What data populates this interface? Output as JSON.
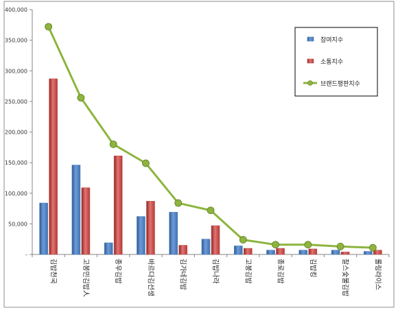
{
  "chart_data": {
    "type": "bar",
    "categories": [
      "김밥천국",
      "고봉민김밥人",
      "종우김밥",
      "바르다김선생",
      "김가네김밥",
      "김밥나라",
      "고봉김밥",
      "종로김밥",
      "김밥킹",
      "찰스숯불김밥",
      "롤링라이스"
    ],
    "series": [
      {
        "name": "참여지수",
        "type": "bar",
        "color": "#4A7EBB",
        "values": [
          84000,
          146000,
          19000,
          62000,
          69000,
          25000,
          14000,
          7000,
          7000,
          7000,
          5000
        ]
      },
      {
        "name": "소통지수",
        "type": "bar",
        "color": "#C0504D",
        "values": [
          287000,
          109000,
          161000,
          87000,
          15000,
          47000,
          10000,
          10000,
          9000,
          4000,
          7000
        ]
      },
      {
        "name": "브랜드평판지수",
        "type": "line",
        "color": "#8DB43E",
        "marker_color": "#8DB43E",
        "values": [
          372000,
          256000,
          180000,
          149000,
          84000,
          72000,
          24000,
          16000,
          16000,
          13000,
          11000
        ]
      }
    ],
    "ylim": [
      0,
      400000
    ],
    "yticks": [
      "-",
      "50,000",
      "100,000",
      "150,000",
      "200,000",
      "250,000",
      "300,000",
      "350,000",
      "400,000"
    ],
    "legend_position": "top-right",
    "grid": false,
    "title": "",
    "xlabel": "",
    "ylabel": ""
  }
}
